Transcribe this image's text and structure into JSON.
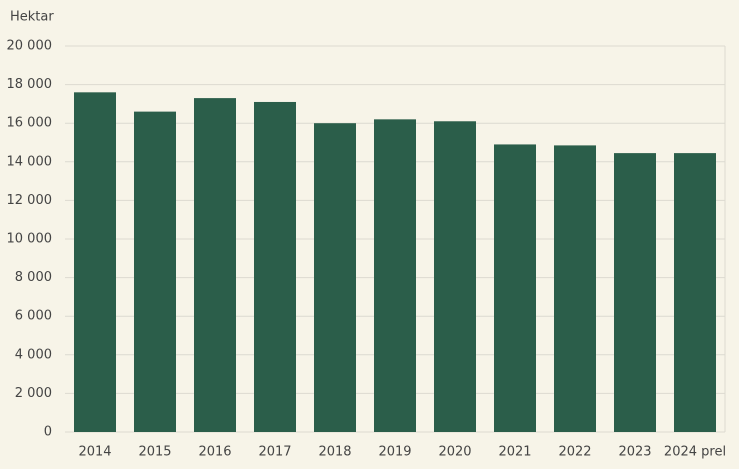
{
  "chart_data": {
    "type": "bar",
    "y_label": "Hektar",
    "categories": [
      "2014",
      "2015",
      "2016",
      "2017",
      "2018",
      "2019",
      "2020",
      "2021",
      "2022",
      "2023",
      "2024 prel"
    ],
    "values": [
      17600,
      16600,
      17300,
      17100,
      16000,
      16200,
      16100,
      14900,
      14850,
      14450,
      14450
    ],
    "color": "#2b5e4a",
    "ylim": [
      0,
      20000
    ],
    "yticks": [
      0,
      {
        "value": 2000,
        "label": "2 000"
      },
      {
        "value": 4000,
        "label": "4 000"
      },
      {
        "value": 6000,
        "label": "6 000"
      },
      {
        "value": 8000,
        "label": "8 000"
      },
      {
        "value": 10000,
        "label": "10 000"
      },
      {
        "value": 12000,
        "label": "12 000"
      },
      {
        "value": 14000,
        "label": "14 000"
      },
      {
        "value": 16000,
        "label": "16 000"
      },
      {
        "value": 18000,
        "label": "18 000"
      },
      {
        "value": 20000,
        "label": "20 000"
      }
    ],
    "grid": true
  }
}
